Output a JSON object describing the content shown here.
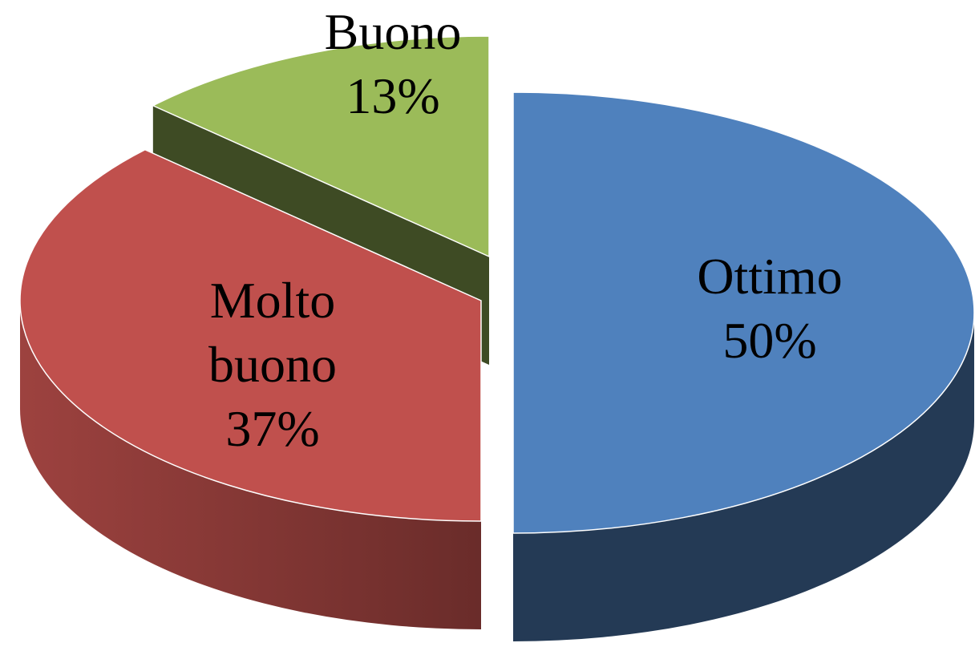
{
  "chart_data": {
    "type": "pie",
    "categories": [
      "Ottimo",
      "Molto buono",
      "Buono"
    ],
    "values": [
      50,
      37,
      13
    ],
    "value_labels": [
      "50%",
      "37%",
      "13%"
    ],
    "colors": [
      "#4f81bd",
      "#c0504d",
      "#9bbb59"
    ]
  }
}
